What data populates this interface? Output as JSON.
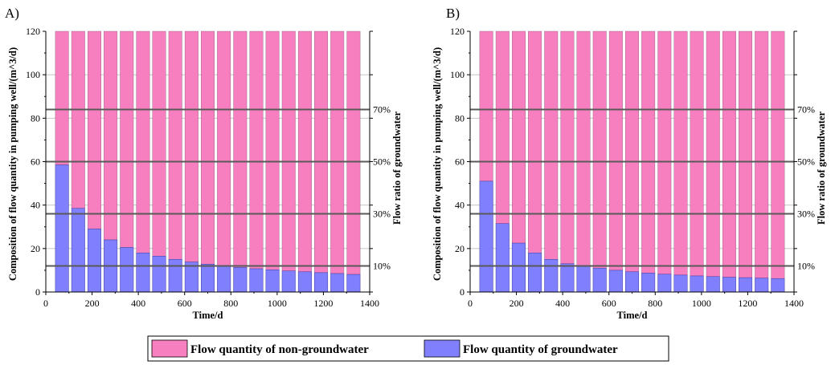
{
  "chart_data": [
    {
      "type": "bar",
      "panel_label": "A)",
      "stacked": true,
      "xlabel": "Time/d",
      "ylabel": "Composition of flow quantity in pumping well/(m^3/d)",
      "y2label": "Flow ratio of groundwater",
      "xlim": [
        0,
        1400
      ],
      "ylim": [
        0,
        120
      ],
      "xticks": [
        "0",
        "200",
        "400",
        "600",
        "800",
        "1000",
        "1200",
        "1400"
      ],
      "yticks": [
        "0",
        "20",
        "40",
        "60",
        "80",
        "100",
        "120"
      ],
      "ratio_lines": [
        {
          "value": 12,
          "label": "10%"
        },
        {
          "value": 36,
          "label": "30%"
        },
        {
          "value": 60,
          "label": "50%"
        },
        {
          "value": 84,
          "label": "70%"
        }
      ],
      "x": [
        70,
        140,
        210,
        280,
        350,
        420,
        490,
        560,
        630,
        700,
        770,
        840,
        910,
        980,
        1050,
        1120,
        1190,
        1260,
        1330
      ],
      "total": 120,
      "series": [
        {
          "name": "Flow quantity of groundwater",
          "values": [
            58.5,
            38.5,
            29,
            24,
            20.5,
            18,
            16.5,
            15,
            13.8,
            12.8,
            12,
            11.3,
            10.7,
            10.2,
            9.7,
            9.3,
            8.9,
            8.5,
            8.1
          ]
        },
        {
          "name": "Flow quantity of non-groundwater",
          "values": [
            61.5,
            81.5,
            91,
            96,
            99.5,
            102,
            103.5,
            105,
            106.2,
            107.2,
            108,
            108.7,
            109.3,
            109.8,
            110.3,
            110.7,
            111.1,
            111.5,
            111.9
          ]
        }
      ]
    },
    {
      "type": "bar",
      "panel_label": "B)",
      "stacked": true,
      "xlabel": "Time/d",
      "ylabel": "Composition of flow quantity in pumping well/(m^3/d)",
      "y2label": "Flow ratio of groundwater",
      "xlim": [
        0,
        1400
      ],
      "ylim": [
        0,
        120
      ],
      "xticks": [
        "0",
        "200",
        "400",
        "600",
        "800",
        "1000",
        "1200",
        "1400"
      ],
      "yticks": [
        "0",
        "20",
        "40",
        "60",
        "80",
        "100",
        "120"
      ],
      "ratio_lines": [
        {
          "value": 12,
          "label": "10%"
        },
        {
          "value": 36,
          "label": "30%"
        },
        {
          "value": 60,
          "label": "50%"
        },
        {
          "value": 84,
          "label": "70%"
        }
      ],
      "x": [
        70,
        140,
        210,
        280,
        350,
        420,
        490,
        560,
        630,
        700,
        770,
        840,
        910,
        980,
        1050,
        1120,
        1190,
        1260,
        1330
      ],
      "total": 120,
      "series": [
        {
          "name": "Flow quantity of groundwater",
          "values": [
            51,
            31.5,
            22.5,
            18,
            15,
            13,
            12,
            11,
            10,
            9.3,
            8.7,
            8.2,
            7.8,
            7.4,
            7.1,
            6.8,
            6.6,
            6.4,
            6.2
          ]
        },
        {
          "name": "Flow quantity of non-groundwater",
          "values": [
            69,
            88.5,
            97.5,
            102,
            105,
            107,
            108,
            109,
            110,
            110.7,
            111.3,
            111.8,
            112.2,
            112.6,
            112.9,
            113.2,
            113.4,
            113.6,
            113.8
          ]
        }
      ]
    }
  ],
  "legend": {
    "items": [
      {
        "label": "Flow quantity of non-groundwater",
        "color": "#f77fbf"
      },
      {
        "label": "Flow quantity of groundwater",
        "color": "#8080ff"
      }
    ]
  },
  "colors": {
    "groundwater": "#8080ff",
    "non_groundwater": "#f77fbf",
    "ratio_line": "#595959",
    "grid": "#bdbdbd"
  }
}
